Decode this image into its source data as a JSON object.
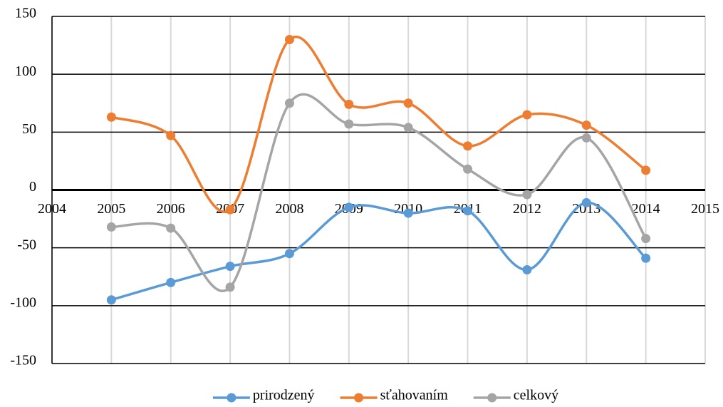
{
  "chart_data": {
    "type": "line",
    "x": [
      2005,
      2006,
      2007,
      2008,
      2009,
      2010,
      2011,
      2012,
      2013,
      2014
    ],
    "series": [
      {
        "name": "prirodzený",
        "color": "#5b9bd5",
        "values": [
          -95,
          -80,
          -66,
          -55,
          -15,
          -20,
          -18,
          -69,
          -11,
          -59
        ]
      },
      {
        "name": "sťahovaním",
        "color": "#ed7d31",
        "values": [
          63,
          47,
          -17,
          130,
          74,
          75,
          38,
          65,
          56,
          17
        ]
      },
      {
        "name": "celkový",
        "color": "#a5a5a5",
        "values": [
          -32,
          -33,
          -84,
          75,
          57,
          54,
          18,
          -4,
          45,
          -42
        ]
      }
    ],
    "xlim": [
      2004,
      2015
    ],
    "xticks": [
      2004,
      2005,
      2006,
      2007,
      2008,
      2009,
      2010,
      2011,
      2012,
      2013,
      2014,
      2015
    ],
    "ylim": [
      -150,
      150
    ],
    "yticks": [
      -150,
      -100,
      -50,
      0,
      50,
      100,
      150
    ],
    "grid": true,
    "smooth": true,
    "legend": "bottom"
  }
}
